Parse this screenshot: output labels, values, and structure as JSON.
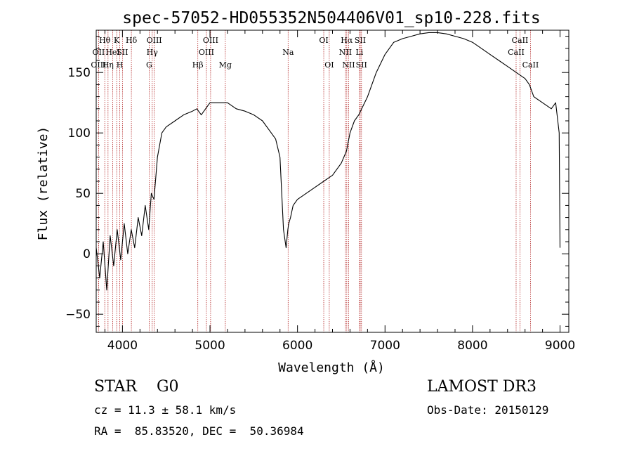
{
  "chart_data": {
    "type": "line",
    "title": "spec-57052-HD055352N504406V01_sp10-228.fits",
    "xlabel": "Wavelength (Å)",
    "ylabel": "Flux (relative)",
    "xlim": [
      3700,
      9100
    ],
    "ylim": [
      -65,
      185
    ],
    "xticks": [
      4000,
      5000,
      6000,
      7000,
      8000,
      9000
    ],
    "yticks": [
      -50,
      0,
      50,
      100,
      150
    ],
    "xtick_labels": [
      "4000",
      "5000",
      "6000",
      "7000",
      "8000",
      "9000"
    ],
    "ytick_labels": [
      "−50",
      "0",
      "50",
      "100",
      "150"
    ],
    "series": [
      {
        "name": "spectrum",
        "x": [
          3700,
          3740,
          3780,
          3820,
          3860,
          3900,
          3940,
          3980,
          4020,
          4060,
          4100,
          4140,
          4180,
          4220,
          4260,
          4300,
          4330,
          4360,
          4400,
          4450,
          4500,
          4600,
          4700,
          4800,
          4850,
          4900,
          5000,
          5100,
          5200,
          5300,
          5400,
          5500,
          5600,
          5700,
          5750,
          5800,
          5840,
          5870,
          5890,
          5900,
          5920,
          5950,
          6000,
          6100,
          6200,
          6300,
          6400,
          6500,
          6560,
          6600,
          6650,
          6700,
          6800,
          6900,
          7000,
          7100,
          7200,
          7300,
          7400,
          7500,
          7600,
          7700,
          7800,
          7900,
          8000,
          8100,
          8200,
          8300,
          8400,
          8500,
          8600,
          8650,
          8700,
          8800,
          8900,
          8950,
          8990,
          9000
        ],
        "y": [
          5,
          -20,
          10,
          -30,
          15,
          -10,
          20,
          -5,
          25,
          0,
          20,
          5,
          30,
          15,
          40,
          20,
          50,
          45,
          80,
          100,
          105,
          110,
          115,
          118,
          120,
          115,
          125,
          125,
          125,
          120,
          118,
          115,
          110,
          100,
          95,
          80,
          20,
          5,
          20,
          25,
          30,
          40,
          45,
          50,
          55,
          60,
          65,
          75,
          85,
          100,
          110,
          115,
          130,
          150,
          165,
          175,
          178,
          180,
          182,
          183,
          183,
          182,
          180,
          178,
          175,
          170,
          165,
          160,
          155,
          150,
          145,
          140,
          130,
          125,
          120,
          125,
          100,
          5
        ]
      }
    ],
    "line_markers": [
      {
        "name": "Hθ",
        "wavelength": 3798,
        "row": 0
      },
      {
        "name": "OII",
        "wavelength": 3727,
        "row": 1
      },
      {
        "name": "OIII",
        "wavelength": 3727,
        "row": 2
      },
      {
        "name": "K",
        "wavelength": 3934,
        "row": 0
      },
      {
        "name": "HeI",
        "wavelength": 3889,
        "row": 1
      },
      {
        "name": "Hη",
        "wavelength": 3835,
        "row": 2
      },
      {
        "name": "SII",
        "wavelength": 4000,
        "row": 1
      },
      {
        "name": "H",
        "wavelength": 3969,
        "row": 2
      },
      {
        "name": "Hδ",
        "wavelength": 4102,
        "row": 0
      },
      {
        "name": "OIII",
        "wavelength": 4363,
        "row": 0
      },
      {
        "name": "Hγ",
        "wavelength": 4340,
        "row": 1
      },
      {
        "name": "G",
        "wavelength": 4305,
        "row": 2
      },
      {
        "name": "OIII",
        "wavelength": 5007,
        "row": 0
      },
      {
        "name": "OIII",
        "wavelength": 4959,
        "row": 1
      },
      {
        "name": "Hβ",
        "wavelength": 4861,
        "row": 2
      },
      {
        "name": "Mg",
        "wavelength": 5175,
        "row": 2
      },
      {
        "name": "Na",
        "wavelength": 5893,
        "row": 1
      },
      {
        "name": "OI",
        "wavelength": 6300,
        "row": 0
      },
      {
        "name": "OI",
        "wavelength": 6363,
        "row": 2
      },
      {
        "name": "Hα",
        "wavelength": 6563,
        "row": 0
      },
      {
        "name": "NII",
        "wavelength": 6548,
        "row": 1
      },
      {
        "name": "NII",
        "wavelength": 6584,
        "row": 2
      },
      {
        "name": "SII",
        "wavelength": 6717,
        "row": 0
      },
      {
        "name": "Li",
        "wavelength": 6708,
        "row": 1
      },
      {
        "name": "SII",
        "wavelength": 6731,
        "row": 2
      },
      {
        "name": "CaII",
        "wavelength": 8542,
        "row": 0
      },
      {
        "name": "CaII",
        "wavelength": 8498,
        "row": 1
      },
      {
        "name": "CaII",
        "wavelength": 8662,
        "row": 2
      }
    ]
  },
  "info": {
    "class_text": "STAR    G0",
    "survey": "LAMOST DR3",
    "cz": "cz = 11.3 ± 58.1 km/s",
    "obs_date": "Obs-Date: 20150129",
    "coords": "RA =  85.83520, DEC =  50.36984"
  }
}
